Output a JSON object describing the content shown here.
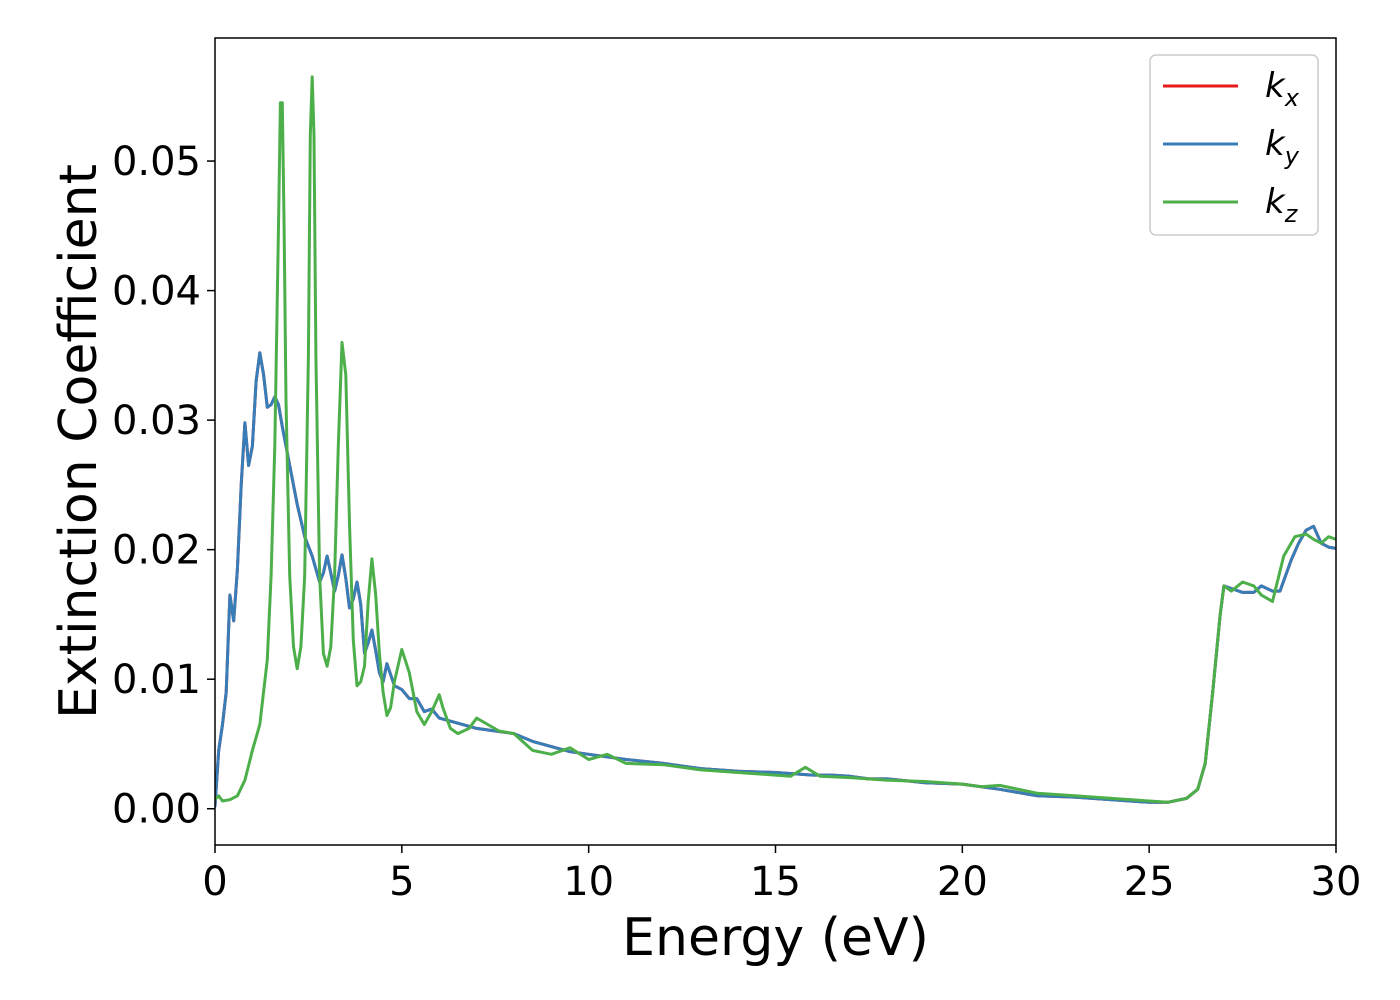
{
  "chart_data": {
    "type": "line",
    "xlabel": "Energy (eV)",
    "ylabel": "Extinction Coefficient",
    "xlim": [
      0,
      30
    ],
    "ylim": [
      -0.0028,
      0.0595
    ],
    "grid": false,
    "legend_position": "top-right",
    "xticks": [
      {
        "value": 0,
        "label": "0"
      },
      {
        "value": 5,
        "label": "5"
      },
      {
        "value": 10,
        "label": "10"
      },
      {
        "value": 15,
        "label": "15"
      },
      {
        "value": 20,
        "label": "20"
      },
      {
        "value": 25,
        "label": "25"
      },
      {
        "value": 30,
        "label": "30"
      }
    ],
    "yticks": [
      {
        "value": 0.0,
        "label": "0.00"
      },
      {
        "value": 0.01,
        "label": "0.01"
      },
      {
        "value": 0.02,
        "label": "0.02"
      },
      {
        "value": 0.03,
        "label": "0.03"
      },
      {
        "value": 0.04,
        "label": "0.04"
      },
      {
        "value": 0.05,
        "label": "0.05"
      }
    ],
    "series": [
      {
        "name": "k",
        "subscript": "x",
        "color": "#e41a1c",
        "x": [
          0,
          0.1,
          0.2,
          0.3,
          0.4,
          0.5,
          0.6,
          0.7,
          0.8,
          0.9,
          1.0,
          1.1,
          1.2,
          1.3,
          1.4,
          1.5,
          1.6,
          1.7,
          1.8,
          1.9,
          2.0,
          2.2,
          2.4,
          2.6,
          2.8,
          2.9,
          3.0,
          3.1,
          3.2,
          3.3,
          3.4,
          3.5,
          3.6,
          3.7,
          3.8,
          3.9,
          4.0,
          4.1,
          4.2,
          4.3,
          4.4,
          4.5,
          4.6,
          4.8,
          5.0,
          5.2,
          5.4,
          5.6,
          5.8,
          6.0,
          6.5,
          7.0,
          7.5,
          8.0,
          8.5,
          9.0,
          9.5,
          10.0,
          11,
          12,
          13,
          14,
          15,
          16,
          16.5,
          17,
          17.5,
          18,
          19,
          20,
          21,
          22,
          23,
          24,
          25,
          25.5,
          26,
          26.3,
          26.5,
          26.7,
          26.9,
          27.0,
          27.2,
          27.5,
          27.8,
          28.0,
          28.3,
          28.5,
          28.8,
          29.0,
          29.2,
          29.4,
          29.6,
          29.8,
          30.0
        ],
        "y": [
          0.0002,
          0.0045,
          0.0065,
          0.009,
          0.0165,
          0.0145,
          0.0185,
          0.025,
          0.0298,
          0.0265,
          0.028,
          0.033,
          0.0352,
          0.0335,
          0.031,
          0.0312,
          0.0318,
          0.0312,
          0.0295,
          0.028,
          0.0265,
          0.0235,
          0.021,
          0.0195,
          0.0175,
          0.0182,
          0.0195,
          0.0182,
          0.0168,
          0.018,
          0.0196,
          0.0178,
          0.0155,
          0.0162,
          0.0175,
          0.0158,
          0.012,
          0.0128,
          0.0138,
          0.0122,
          0.0105,
          0.0098,
          0.0112,
          0.0095,
          0.0092,
          0.0085,
          0.0085,
          0.0075,
          0.0077,
          0.007,
          0.0066,
          0.0062,
          0.006,
          0.0058,
          0.0052,
          0.0048,
          0.0044,
          0.0042,
          0.0038,
          0.0035,
          0.0031,
          0.0029,
          0.0028,
          0.0026,
          0.0026,
          0.0025,
          0.0023,
          0.0023,
          0.002,
          0.0019,
          0.0015,
          0.001,
          0.0009,
          0.0007,
          0.0005,
          0.0005,
          0.0008,
          0.0015,
          0.0035,
          0.009,
          0.015,
          0.0172,
          0.017,
          0.0167,
          0.0167,
          0.0172,
          0.0168,
          0.0168,
          0.0192,
          0.0205,
          0.0215,
          0.0218,
          0.0205,
          0.0202,
          0.0201
        ]
      },
      {
        "name": "k",
        "subscript": "y",
        "color": "#377eb8",
        "x": [
          0,
          0.1,
          0.2,
          0.3,
          0.4,
          0.5,
          0.6,
          0.7,
          0.8,
          0.9,
          1.0,
          1.1,
          1.2,
          1.3,
          1.4,
          1.5,
          1.6,
          1.7,
          1.8,
          1.9,
          2.0,
          2.2,
          2.4,
          2.6,
          2.8,
          2.9,
          3.0,
          3.1,
          3.2,
          3.3,
          3.4,
          3.5,
          3.6,
          3.7,
          3.8,
          3.9,
          4.0,
          4.1,
          4.2,
          4.3,
          4.4,
          4.5,
          4.6,
          4.8,
          5.0,
          5.2,
          5.4,
          5.6,
          5.8,
          6.0,
          6.5,
          7.0,
          7.5,
          8.0,
          8.5,
          9.0,
          9.5,
          10.0,
          11,
          12,
          13,
          14,
          15,
          16,
          16.5,
          17,
          17.5,
          18,
          19,
          20,
          21,
          22,
          23,
          24,
          25,
          25.5,
          26,
          26.3,
          26.5,
          26.7,
          26.9,
          27.0,
          27.2,
          27.5,
          27.8,
          28.0,
          28.3,
          28.5,
          28.8,
          29.0,
          29.2,
          29.4,
          29.6,
          29.8,
          30.0
        ],
        "y": [
          0.0002,
          0.0045,
          0.0065,
          0.009,
          0.0165,
          0.0145,
          0.0185,
          0.025,
          0.0298,
          0.0265,
          0.028,
          0.033,
          0.0352,
          0.0335,
          0.031,
          0.0312,
          0.0318,
          0.0312,
          0.0295,
          0.028,
          0.0265,
          0.0235,
          0.021,
          0.0195,
          0.0175,
          0.0182,
          0.0195,
          0.0182,
          0.0168,
          0.018,
          0.0196,
          0.0178,
          0.0155,
          0.0162,
          0.0175,
          0.0158,
          0.012,
          0.0128,
          0.0138,
          0.0122,
          0.0105,
          0.0098,
          0.0112,
          0.0095,
          0.0092,
          0.0085,
          0.0085,
          0.0075,
          0.0077,
          0.007,
          0.0066,
          0.0062,
          0.006,
          0.0058,
          0.0052,
          0.0048,
          0.0044,
          0.0042,
          0.0038,
          0.0035,
          0.0031,
          0.0029,
          0.0028,
          0.0026,
          0.0026,
          0.0025,
          0.0023,
          0.0023,
          0.002,
          0.0019,
          0.0015,
          0.001,
          0.0009,
          0.0007,
          0.0005,
          0.0005,
          0.0008,
          0.0015,
          0.0035,
          0.009,
          0.015,
          0.0172,
          0.017,
          0.0167,
          0.0167,
          0.0172,
          0.0168,
          0.0168,
          0.0192,
          0.0205,
          0.0215,
          0.0218,
          0.0205,
          0.0202,
          0.0201
        ]
      },
      {
        "name": "k",
        "subscript": "z",
        "color": "#4daf4a",
        "x": [
          0,
          0.1,
          0.2,
          0.4,
          0.6,
          0.8,
          1.0,
          1.2,
          1.4,
          1.5,
          1.6,
          1.7,
          1.75,
          1.8,
          1.85,
          1.9,
          2.0,
          2.1,
          2.2,
          2.3,
          2.4,
          2.5,
          2.55,
          2.6,
          2.65,
          2.7,
          2.8,
          2.9,
          3.0,
          3.1,
          3.2,
          3.3,
          3.4,
          3.5,
          3.6,
          3.7,
          3.8,
          3.9,
          4.0,
          4.1,
          4.2,
          4.3,
          4.4,
          4.5,
          4.6,
          4.7,
          4.8,
          5.0,
          5.2,
          5.4,
          5.6,
          5.8,
          6.0,
          6.1,
          6.3,
          6.5,
          6.8,
          7.0,
          7.3,
          7.6,
          8.0,
          8.5,
          9.0,
          9.5,
          10.0,
          10.5,
          11,
          12,
          13,
          14,
          15,
          15.4,
          15.8,
          16.2,
          17,
          18,
          19,
          20,
          20.5,
          21,
          22,
          23,
          24,
          25,
          25.5,
          26,
          26.3,
          26.5,
          26.7,
          26.9,
          27.0,
          27.2,
          27.5,
          27.8,
          28.0,
          28.3,
          28.6,
          28.9,
          29.2,
          29.4,
          29.6,
          29.8,
          30.0
        ],
        "y": [
          0.0007,
          0.001,
          0.0006,
          0.0007,
          0.001,
          0.0022,
          0.0045,
          0.0065,
          0.0115,
          0.018,
          0.028,
          0.045,
          0.0545,
          0.0545,
          0.045,
          0.0315,
          0.018,
          0.0125,
          0.0108,
          0.0125,
          0.018,
          0.035,
          0.052,
          0.0565,
          0.052,
          0.035,
          0.018,
          0.012,
          0.011,
          0.0125,
          0.018,
          0.028,
          0.036,
          0.0335,
          0.022,
          0.013,
          0.0095,
          0.0098,
          0.011,
          0.016,
          0.0193,
          0.0165,
          0.012,
          0.009,
          0.0072,
          0.0078,
          0.0098,
          0.0123,
          0.0105,
          0.0075,
          0.0065,
          0.0075,
          0.0088,
          0.0078,
          0.0062,
          0.0058,
          0.0062,
          0.007,
          0.0065,
          0.006,
          0.0058,
          0.0045,
          0.0042,
          0.0047,
          0.0038,
          0.0042,
          0.0035,
          0.0034,
          0.003,
          0.0028,
          0.0026,
          0.0025,
          0.0032,
          0.0025,
          0.0024,
          0.0022,
          0.0021,
          0.0019,
          0.0017,
          0.0018,
          0.0012,
          0.001,
          0.0008,
          0.0006,
          0.0005,
          0.0008,
          0.0015,
          0.0035,
          0.009,
          0.015,
          0.0172,
          0.0168,
          0.0175,
          0.0172,
          0.0165,
          0.016,
          0.0195,
          0.021,
          0.0212,
          0.0208,
          0.0205,
          0.021,
          0.0208
        ]
      }
    ]
  }
}
